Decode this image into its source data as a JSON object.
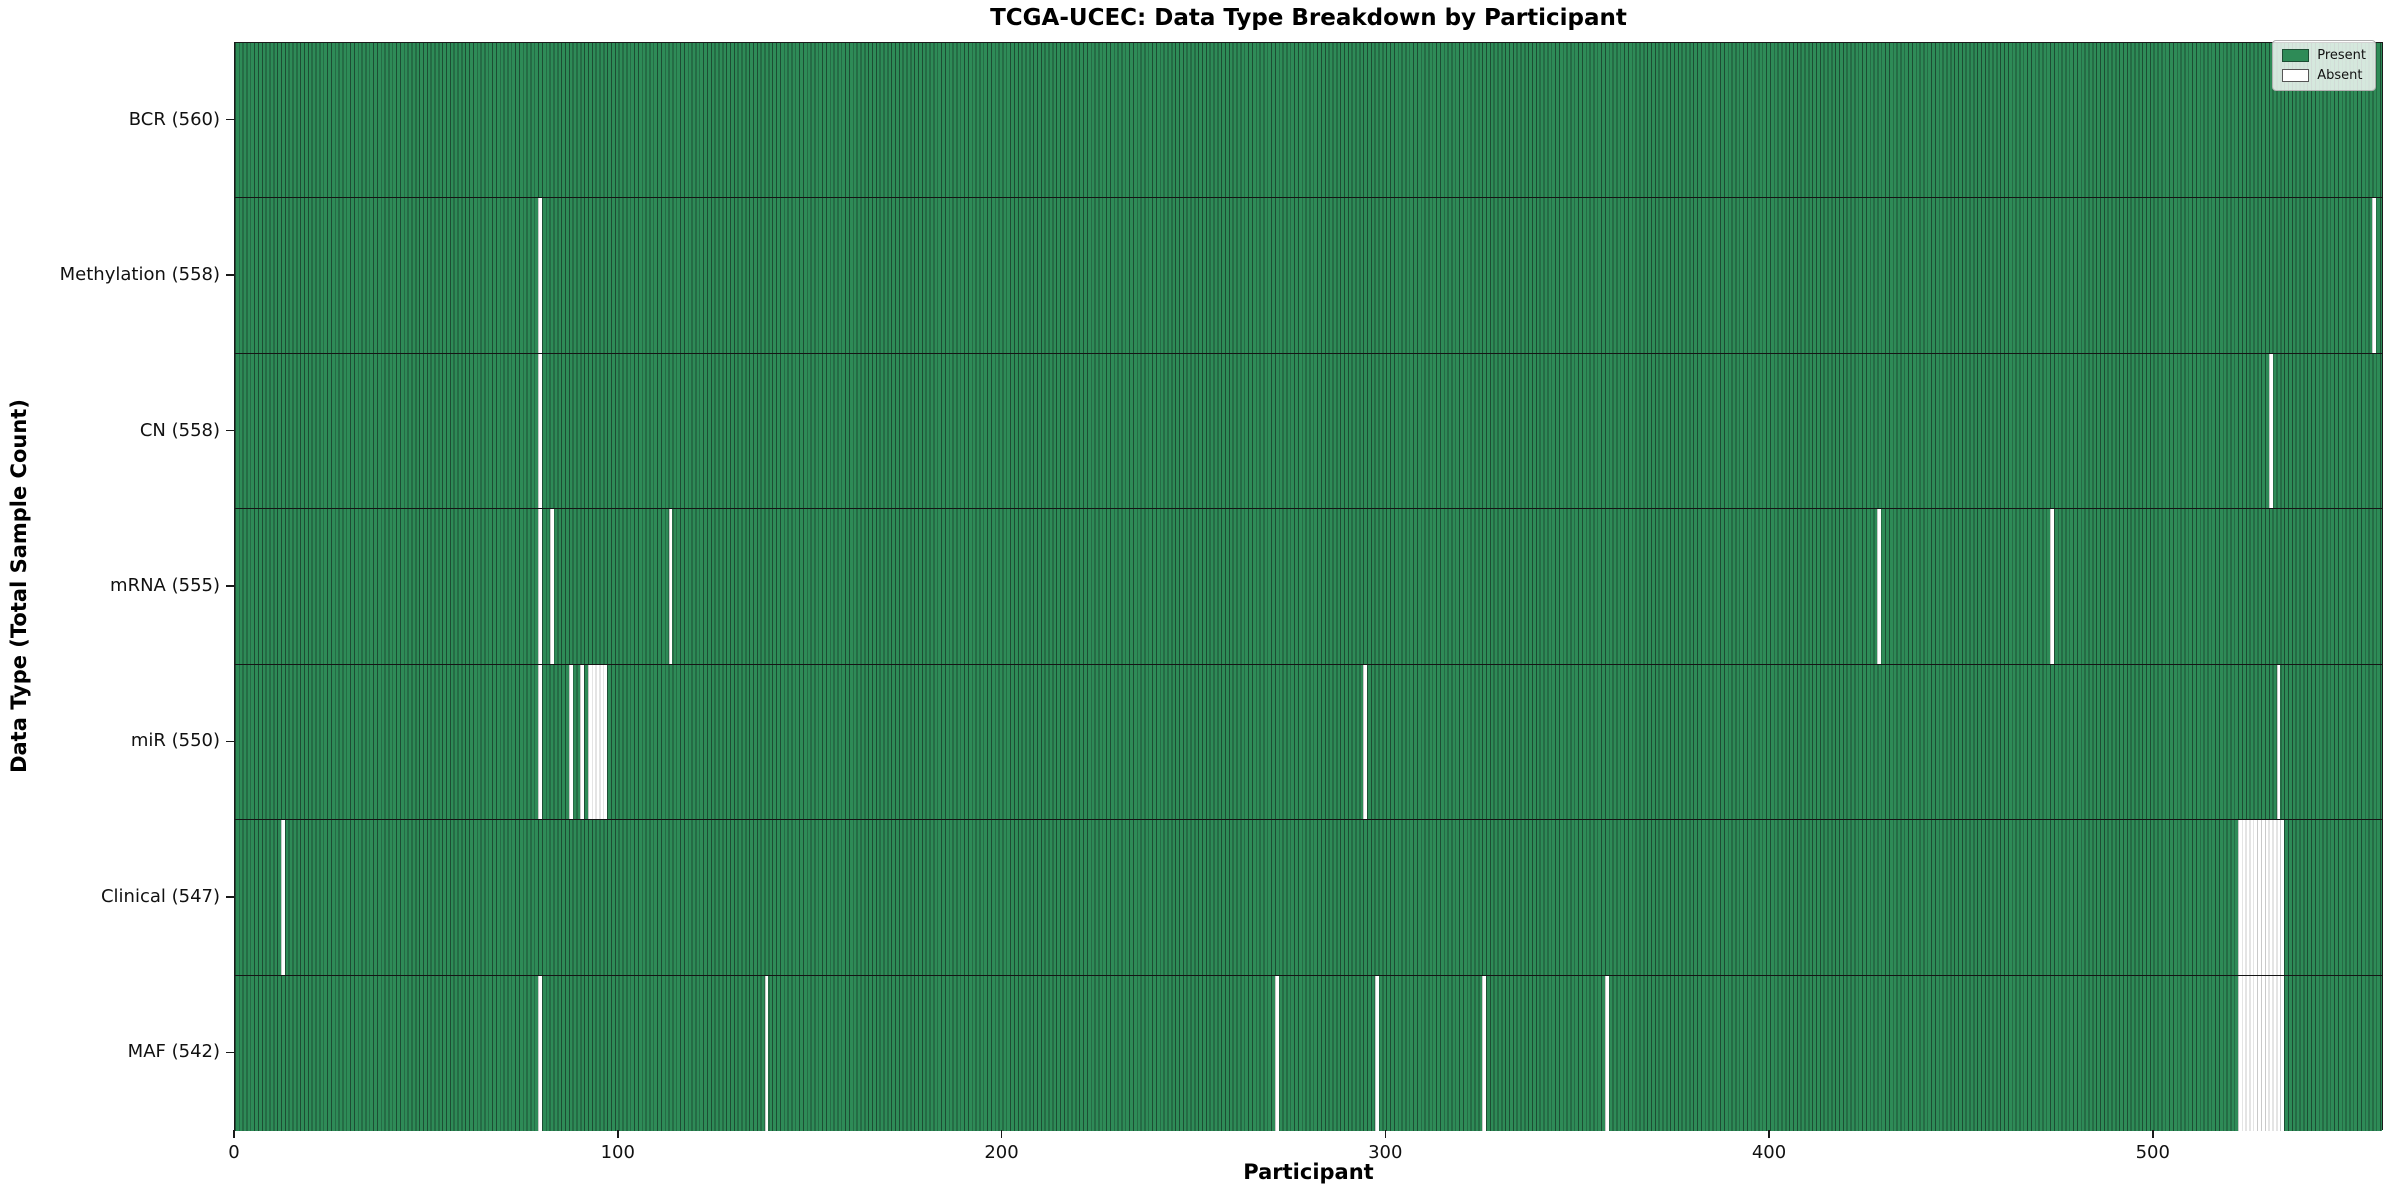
{
  "chart_data": {
    "type": "heatmap",
    "title": "TCGA-UCEC: Data Type Breakdown by Participant",
    "xlabel": "Participant",
    "ylabel": "Data Type (Total Sample Count)",
    "n_participants": 560,
    "xlim": [
      0,
      560
    ],
    "x_ticks": [
      0,
      100,
      200,
      300,
      400,
      500
    ],
    "grid": false,
    "legend": {
      "position": "upper-right",
      "entries": [
        {
          "label": "Present",
          "color": "#2e8b57"
        },
        {
          "label": "Absent",
          "color": "#ffffff"
        }
      ]
    },
    "colors": {
      "present": "#2e8b57",
      "present_edge": "#1c4d33",
      "absent": "#ffffff",
      "absent_edge": "#c9c9c9",
      "row_separator": "#151515",
      "spine": "#1a1a1a"
    },
    "rows": [
      {
        "name": "BCR",
        "label": "BCR (560)",
        "present_count": 560,
        "absent_participants": []
      },
      {
        "name": "Methylation",
        "label": "Methylation (558)",
        "present_count": 558,
        "absent_participants": [
          79,
          557
        ]
      },
      {
        "name": "CN",
        "label": "CN (558)",
        "present_count": 558,
        "absent_participants": [
          79,
          530
        ]
      },
      {
        "name": "mRNA",
        "label": "mRNA (555)",
        "present_count": 555,
        "absent_participants": [
          79,
          82,
          113,
          428,
          473
        ]
      },
      {
        "name": "miR",
        "label": "miR (550)",
        "present_count": 550,
        "absent_participants": [
          79,
          87,
          90,
          92,
          93,
          94,
          95,
          96,
          294,
          532
        ]
      },
      {
        "name": "Clinical",
        "label": "Clinical (547)",
        "present_count": 547,
        "absent_participants": [
          12,
          522,
          523,
          524,
          525,
          526,
          527,
          528,
          529,
          530,
          531,
          532,
          533
        ]
      },
      {
        "name": "MAF",
        "label": "MAF (542)",
        "present_count": 542,
        "absent_participants": [
          79,
          138,
          271,
          297,
          325,
          357,
          522,
          523,
          524,
          525,
          526,
          527,
          528,
          529,
          530,
          531,
          532,
          533
        ]
      }
    ]
  }
}
